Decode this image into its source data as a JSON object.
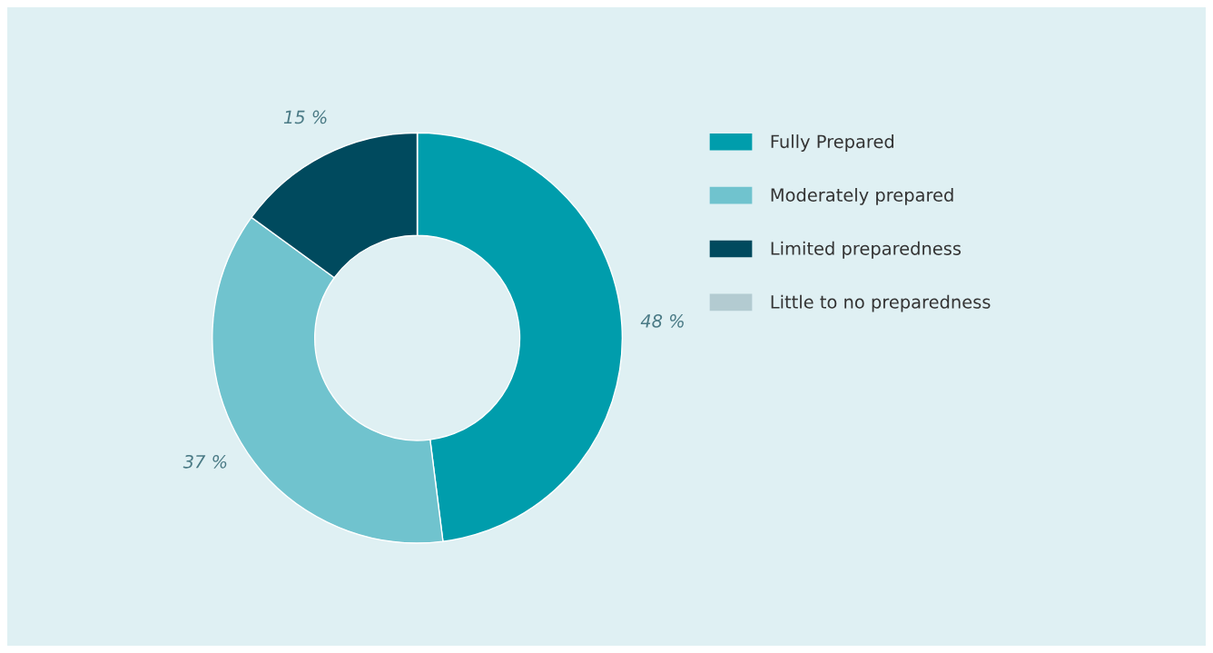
{
  "chart_data": {
    "type": "donut",
    "categories": [
      "Fully Prepared",
      "Moderately prepared",
      "Limited preparedness",
      "Little to no preparedness"
    ],
    "values": [
      48,
      37,
      15,
      0
    ],
    "colors": [
      "#009dac",
      "#70c3ce",
      "#004a5e",
      "#b3cbd1"
    ],
    "value_labels": [
      "48 %",
      "37 %",
      "15 %",
      null
    ],
    "legend": "right"
  }
}
